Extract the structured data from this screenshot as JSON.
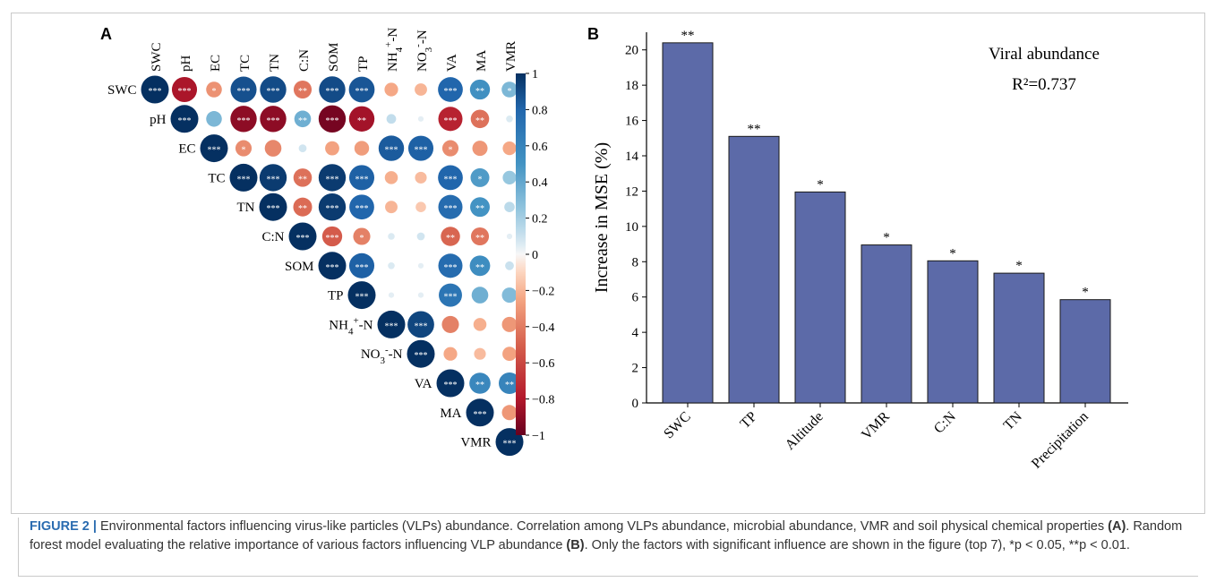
{
  "panels": {
    "a_label": "A",
    "b_label": "B"
  },
  "chart_data": [
    {
      "type": "heatmap",
      "variables": [
        "SWC",
        "pH",
        "EC",
        "TC",
        "TN",
        "C:N",
        "SOM",
        "TP",
        "NH4+-N",
        "NO3--N",
        "VA",
        "MA",
        "VMR"
      ],
      "matrix_upper": [
        [
          1,
          -0.82,
          -0.32,
          0.88,
          0.9,
          -0.42,
          0.9,
          0.86,
          -0.24,
          -0.2,
          0.8,
          0.52,
          0.32
        ],
        [
          null,
          1,
          0.32,
          -0.9,
          -0.9,
          0.36,
          -0.96,
          -0.84,
          0.12,
          0.04,
          -0.76,
          -0.44,
          0.06
        ],
        [
          null,
          null,
          1,
          -0.34,
          -0.36,
          0.08,
          -0.26,
          -0.28,
          0.84,
          0.82,
          -0.34,
          -0.3,
          -0.24
        ],
        [
          null,
          null,
          null,
          1,
          0.96,
          -0.44,
          0.96,
          0.82,
          -0.22,
          -0.18,
          0.8,
          0.46,
          0.24
        ],
        [
          null,
          null,
          null,
          null,
          1,
          -0.46,
          0.96,
          0.8,
          -0.2,
          -0.14,
          0.76,
          0.5,
          0.14
        ],
        [
          null,
          null,
          null,
          null,
          null,
          1,
          -0.52,
          -0.38,
          0.06,
          0.08,
          -0.48,
          -0.42,
          0.04
        ],
        [
          null,
          null,
          null,
          null,
          null,
          null,
          1,
          0.82,
          0.06,
          0.04,
          0.76,
          0.54,
          0.1
        ],
        [
          null,
          null,
          null,
          null,
          null,
          null,
          null,
          1,
          0.04,
          0.04,
          0.7,
          0.36,
          0.3
        ],
        [
          null,
          null,
          null,
          null,
          null,
          null,
          null,
          null,
          1,
          0.92,
          -0.38,
          -0.22,
          -0.3
        ],
        [
          null,
          null,
          null,
          null,
          null,
          null,
          null,
          null,
          null,
          1,
          -0.24,
          -0.18,
          -0.26
        ],
        [
          null,
          null,
          null,
          null,
          null,
          null,
          null,
          null,
          null,
          null,
          1,
          0.58,
          0.6
        ],
        [
          null,
          null,
          null,
          null,
          null,
          null,
          null,
          null,
          null,
          null,
          null,
          1,
          -0.3
        ],
        [
          null,
          null,
          null,
          null,
          null,
          null,
          null,
          null,
          null,
          null,
          null,
          null,
          1
        ]
      ],
      "significance": [
        [
          "***",
          "***",
          "*",
          "***",
          "***",
          "**",
          "***",
          "***",
          "",
          "",
          "***",
          "**",
          "*"
        ],
        [
          null,
          "***",
          "",
          "***",
          "***",
          "**",
          "***",
          "**",
          "",
          "",
          "***",
          "**",
          ""
        ],
        [
          null,
          null,
          "***",
          "*",
          "",
          "",
          "",
          "",
          "***",
          "***",
          "*",
          "",
          ""
        ],
        [
          null,
          null,
          null,
          "***",
          "***",
          "**",
          "***",
          "***",
          "",
          "",
          "***",
          "*",
          ""
        ],
        [
          null,
          null,
          null,
          null,
          "***",
          "**",
          "***",
          "***",
          "",
          "",
          "***",
          "**",
          ""
        ],
        [
          null,
          null,
          null,
          null,
          null,
          "***",
          "***",
          "*",
          "",
          "",
          "**",
          "**",
          ""
        ],
        [
          null,
          null,
          null,
          null,
          null,
          null,
          "***",
          "***",
          "",
          "",
          "***",
          "**",
          ""
        ],
        [
          null,
          null,
          null,
          null,
          null,
          null,
          null,
          "***",
          "",
          "",
          "***",
          "",
          ""
        ],
        [
          null,
          null,
          null,
          null,
          null,
          null,
          null,
          null,
          "***",
          "***",
          "",
          "",
          ""
        ],
        [
          null,
          null,
          null,
          null,
          null,
          null,
          null,
          null,
          null,
          "***",
          "",
          "",
          ""
        ],
        [
          null,
          null,
          null,
          null,
          null,
          null,
          null,
          null,
          null,
          null,
          "***",
          "**",
          "**"
        ],
        [
          null,
          null,
          null,
          null,
          null,
          null,
          null,
          null,
          null,
          null,
          null,
          "***",
          ""
        ],
        [
          null,
          null,
          null,
          null,
          null,
          null,
          null,
          null,
          null,
          null,
          null,
          null,
          "***"
        ]
      ],
      "colorbar": {
        "ticks": [
          "1",
          "0.8",
          "0.6",
          "0.4",
          "0.2",
          "0",
          "−0.2",
          "−0.4",
          "−0.6",
          "−0.8",
          "−1"
        ],
        "range": [
          -1,
          1
        ]
      },
      "colors": {
        "positive": "#053061",
        "mid": "#f7f7f7",
        "negative": "#67001f"
      }
    },
    {
      "type": "bar",
      "categories": [
        "SWC",
        "TP",
        "Altitude",
        "VMR",
        "C:N",
        "TN",
        "Precipitation"
      ],
      "values": [
        20.4,
        15.1,
        11.95,
        8.95,
        8.05,
        7.35,
        5.85
      ],
      "significance": [
        "**",
        "**",
        "*",
        "*",
        "*",
        "*",
        "*"
      ],
      "ylabel": "Increase in MSE (%)",
      "ylim": [
        0,
        21
      ],
      "yticks": [
        0,
        2,
        4,
        6,
        8,
        10,
        12,
        14,
        16,
        18,
        20
      ],
      "annotation_title": "Viral abundance",
      "annotation_r2": "R²=0.737",
      "bar_color": "#5c6aa8"
    }
  ],
  "caption": {
    "label": "FIGURE 2 |",
    "text1": " Environmental factors influencing virus-like particles (VLPs) abundance. Correlation among VLPs abundance, microbial abundance, VMR and soil physical chemical properties ",
    "ref_a": "(A)",
    "text2": ". Random forest model evaluating the relative importance of various factors influencing VLP abundance ",
    "ref_b": "(B)",
    "text3": ". Only the factors with significant influence are shown in the figure (top 7), *p < 0.05, **p < 0.01."
  }
}
